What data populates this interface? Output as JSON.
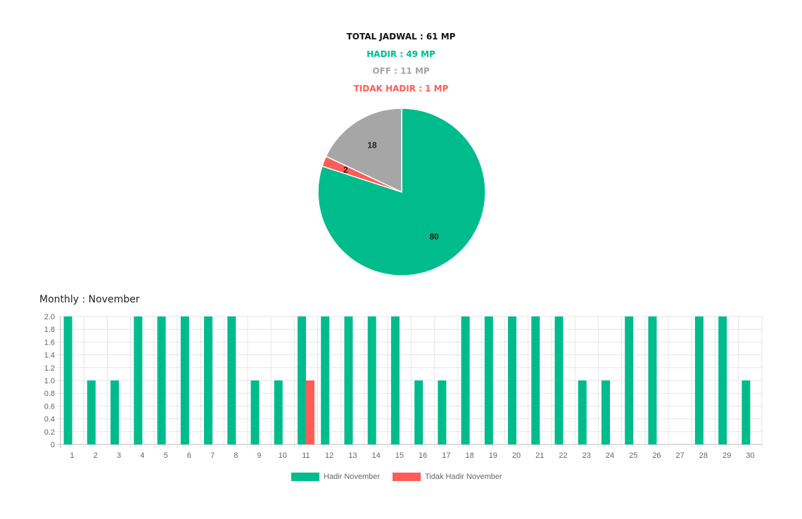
{
  "summary": {
    "total": "TOTAL JADWAL : 61 MP",
    "hadir": "HADIR : 49 MP",
    "off": "OFF : 11 MP",
    "tidak_hadir": "TIDAK HADIR : 1 MP"
  },
  "colors": {
    "hadir": "#00bc8c",
    "off": "#a6a6a6",
    "tidak_hadir": "#ff5c57",
    "text": "#111111"
  },
  "monthly_title": "Monthly : November",
  "chart_data": [
    {
      "type": "pie",
      "slices": [
        {
          "value": 80,
          "label": "80",
          "color": "#00bc8c"
        },
        {
          "value": 2,
          "label": "2",
          "color": "#ff5c57"
        },
        {
          "value": 18,
          "label": "18",
          "color": "#a6a6a6"
        }
      ]
    },
    {
      "type": "bar",
      "title": "Monthly : November",
      "categories": [
        "1",
        "2",
        "3",
        "4",
        "5",
        "6",
        "7",
        "8",
        "9",
        "10",
        "11",
        "12",
        "13",
        "14",
        "15",
        "16",
        "17",
        "18",
        "19",
        "20",
        "21",
        "22",
        "23",
        "24",
        "25",
        "26",
        "27",
        "28",
        "29",
        "30"
      ],
      "series": [
        {
          "name": "Hadir November",
          "color": "#00bc8c",
          "values": [
            2,
            1,
            1,
            2,
            2,
            2,
            2,
            2,
            1,
            1,
            2,
            2,
            2,
            2,
            2,
            1,
            1,
            2,
            2,
            2,
            2,
            2,
            1,
            1,
            2,
            2,
            0,
            2,
            2,
            1
          ]
        },
        {
          "name": "Tidak Hadir November",
          "color": "#ff5c57",
          "values": [
            0,
            0,
            0,
            0,
            0,
            0,
            0,
            0,
            0,
            0,
            1,
            0,
            0,
            0,
            0,
            0,
            0,
            0,
            0,
            0,
            0,
            0,
            0,
            0,
            0,
            0,
            0,
            0,
            0,
            0
          ]
        }
      ],
      "ylim": [
        0,
        2
      ],
      "yticks": [
        "0",
        "0.2",
        "0.4",
        "0.6",
        "0.8",
        "1.0",
        "1.2",
        "1.4",
        "1.6",
        "1.8",
        "2.0"
      ],
      "grid": true,
      "legend": "bottom"
    }
  ]
}
